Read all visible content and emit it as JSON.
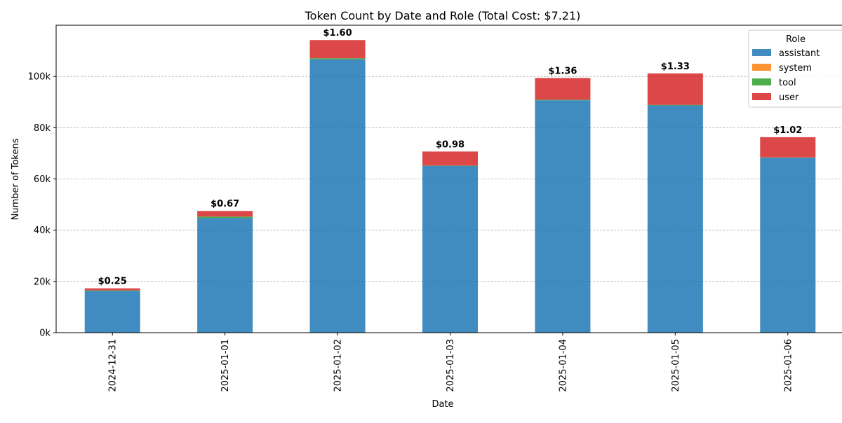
{
  "chart_data": {
    "type": "bar",
    "stacked": true,
    "title": "Token Count by Date and Role (Total Cost: $7.21)",
    "xlabel": "Date",
    "ylabel": "Number of Tokens",
    "categories": [
      "2024-12-31",
      "2025-01-01",
      "2025-01-02",
      "2025-01-03",
      "2025-01-04",
      "2025-01-05",
      "2025-01-06"
    ],
    "ylim": [
      0,
      120000
    ],
    "yticks": [
      0,
      20000,
      40000,
      60000,
      80000,
      100000
    ],
    "ytick_labels": [
      "0k",
      "20k",
      "40k",
      "60k",
      "80k",
      "100k"
    ],
    "grid": "y-dashed",
    "legend": {
      "title": "Role",
      "placement": "top-right"
    },
    "series": [
      {
        "name": "assistant",
        "color": "#1f77b4",
        "values": [
          16300,
          44800,
          106700,
          65100,
          90700,
          88700,
          68300
        ]
      },
      {
        "name": "system",
        "color": "#ff7f0e",
        "values": [
          0,
          0,
          0,
          0,
          0,
          0,
          0
        ]
      },
      {
        "name": "tool",
        "color": "#2ca02c",
        "values": [
          200,
          500,
          400,
          100,
          200,
          200,
          100
        ]
      },
      {
        "name": "user",
        "color": "#d62728",
        "values": [
          800,
          2200,
          7100,
          5500,
          8500,
          12300,
          7900
        ]
      }
    ],
    "bar_annotations": [
      "$0.25",
      "$0.67",
      "$1.60",
      "$0.98",
      "$1.36",
      "$1.33",
      "$1.02"
    ]
  }
}
